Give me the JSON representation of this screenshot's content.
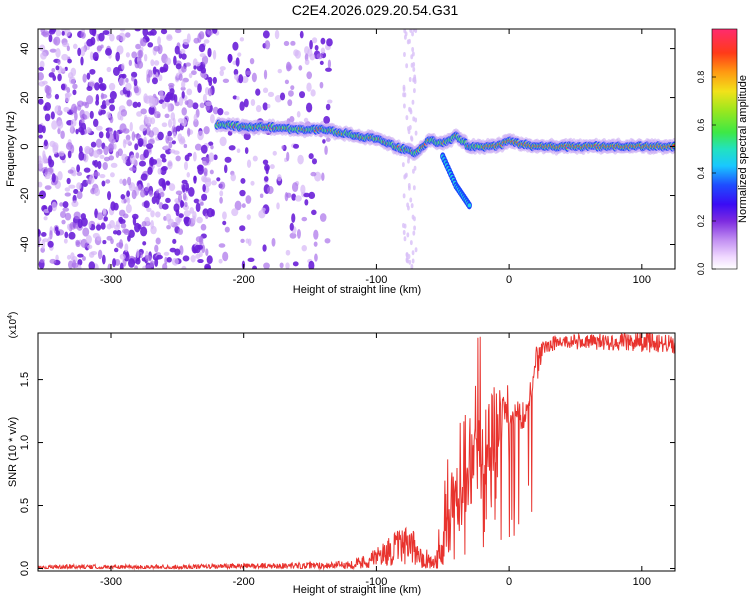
{
  "title": "C2E4.2026.029.20.54.G31",
  "colors": {
    "snr_line": "#e8332e",
    "track_core": "#ff2a2a",
    "track_mid": "#44e85a",
    "track_outer": "#1a40ff",
    "noise": "#7a2bdc"
  },
  "chart_data": [
    {
      "type": "heatmap",
      "panel": "top",
      "xlabel": "Height of straight line (km)",
      "ylabel": "Frequency (Hz)",
      "xlim": [
        -355,
        125
      ],
      "ylim": [
        -50,
        48
      ],
      "xticks": [
        -300,
        -200,
        -100,
        0,
        100
      ],
      "yticks": [
        -40,
        -20,
        0,
        20,
        40
      ],
      "colorbar": {
        "label": "Normalized spectral amplitude",
        "range": [
          0,
          1
        ],
        "ticks": [
          "0.0",
          "0.2",
          "0.4",
          "0.6",
          "0.8"
        ],
        "colormap": "rainbow"
      },
      "track": {
        "x": [
          -220,
          -200,
          -180,
          -160,
          -140,
          -120,
          -100,
          -85,
          -70,
          -60,
          -50,
          -40,
          -30,
          -20,
          -10,
          0,
          20,
          40,
          60,
          80,
          100,
          125
        ],
        "frequency": [
          9,
          8,
          8,
          7,
          7,
          5,
          3,
          0,
          -3,
          3,
          1,
          4,
          0,
          0,
          0,
          2,
          0,
          0,
          0,
          0,
          0,
          0
        ]
      },
      "branch": {
        "x": [
          -50,
          -45,
          -40,
          -35,
          -30
        ],
        "frequency": [
          -4,
          -10,
          -16,
          -20,
          -24
        ]
      },
      "noise_region_x": [
        -355,
        -135
      ]
    },
    {
      "type": "line",
      "panel": "bottom",
      "xlabel": "Height of straight line (km)",
      "ylabel": "SNR (10 * v/v)",
      "y_multiplier": "(x10",
      "y_multiplier_exp": "4",
      "xlim": [
        -355,
        125
      ],
      "ylim": [
        -0.02,
        1.87
      ],
      "xticks": [
        -300,
        -200,
        -100,
        0,
        100
      ],
      "yticks": [
        "0.0",
        "0.5",
        "1.0",
        "1.5"
      ],
      "series": [
        {
          "x": [
            -355,
            -300,
            -250,
            -200,
            -150,
            -120,
            -110,
            -100,
            -90,
            -80,
            -70,
            -60,
            -55,
            -50,
            -45,
            -40,
            -35,
            -30,
            -25,
            -20,
            -15,
            -10,
            -5,
            0,
            5,
            10,
            15,
            20,
            25,
            30,
            40,
            60,
            80,
            100,
            125
          ],
          "values": [
            0.01,
            0.01,
            0.01,
            0.02,
            0.02,
            0.03,
            0.05,
            0.09,
            0.14,
            0.18,
            0.15,
            0.06,
            0.05,
            0.18,
            0.45,
            0.55,
            0.5,
            0.75,
            0.9,
            0.95,
            0.8,
            1.05,
            1.3,
            1.15,
            1.22,
            1.15,
            1.3,
            1.6,
            1.72,
            1.78,
            1.8,
            1.8,
            1.8,
            1.8,
            1.78
          ],
          "spike_envelope": [
            0.02,
            0.02,
            0.02,
            0.03,
            0.04,
            0.05,
            0.1,
            0.15,
            0.25,
            0.32,
            0.28,
            0.12,
            0.1,
            0.7,
            1.05,
            1.2,
            1.2,
            1.85,
            1.85,
            1.85,
            1.4,
            1.75,
            1.85,
            1.4,
            1.42,
            1.35,
            1.55,
            1.75,
            1.8,
            1.83,
            1.85,
            1.85,
            1.86,
            1.87,
            1.85
          ]
        }
      ]
    }
  ]
}
